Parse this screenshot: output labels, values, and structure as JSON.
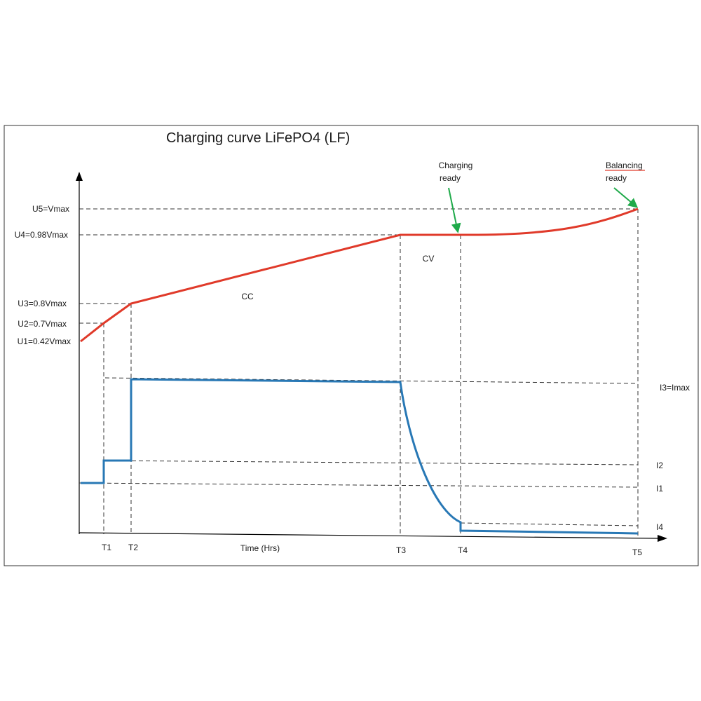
{
  "chart_data": {
    "type": "line",
    "title": "Charging curve LiFePO4 (LF)",
    "xlabel": "Time (Hrs)",
    "x_ticks": [
      "T1",
      "T2",
      "T3",
      "T4",
      "T5"
    ],
    "voltage_ticks": [
      "U5=Vmax",
      "U4=0.98Vmax",
      "U3=0.8Vmax",
      "U2=0.7Vmax",
      "U1=0.42Vmax"
    ],
    "current_ticks": [
      "I3=Imax",
      "I2",
      "I1",
      "I4"
    ],
    "phase_labels": [
      "CC",
      "CV"
    ],
    "callouts": [
      {
        "text_line1": "Charging",
        "text_line2": "ready",
        "target": "T4"
      },
      {
        "text_line1": "Balancing",
        "text_line2": "ready",
        "target": "T5"
      }
    ],
    "colors": {
      "voltage": "#e03a2a",
      "current": "#2878b5",
      "arrow": "#1faa4a",
      "balancing_underline": "#e03a2a"
    },
    "series": [
      {
        "key": "voltage",
        "unit": "Vmax",
        "points": [
          {
            "t": "0",
            "v": 0.42
          },
          {
            "t": "T1",
            "v": 0.7
          },
          {
            "t": "T2",
            "v": 0.8
          },
          {
            "t": "T3",
            "v": 0.98
          },
          {
            "t": "T4",
            "v": 0.98
          },
          {
            "t": "T5",
            "v": 1.0
          }
        ]
      },
      {
        "key": "current",
        "unit": "Imax",
        "points": [
          {
            "t": "0",
            "i": "I1"
          },
          {
            "t": "T1",
            "i": "I2"
          },
          {
            "t": "T2",
            "i": "I3"
          },
          {
            "t": "T3",
            "i": "I3"
          },
          {
            "t": "T4",
            "i": "I4"
          },
          {
            "t": "T5",
            "i": "I4"
          }
        ]
      }
    ]
  }
}
